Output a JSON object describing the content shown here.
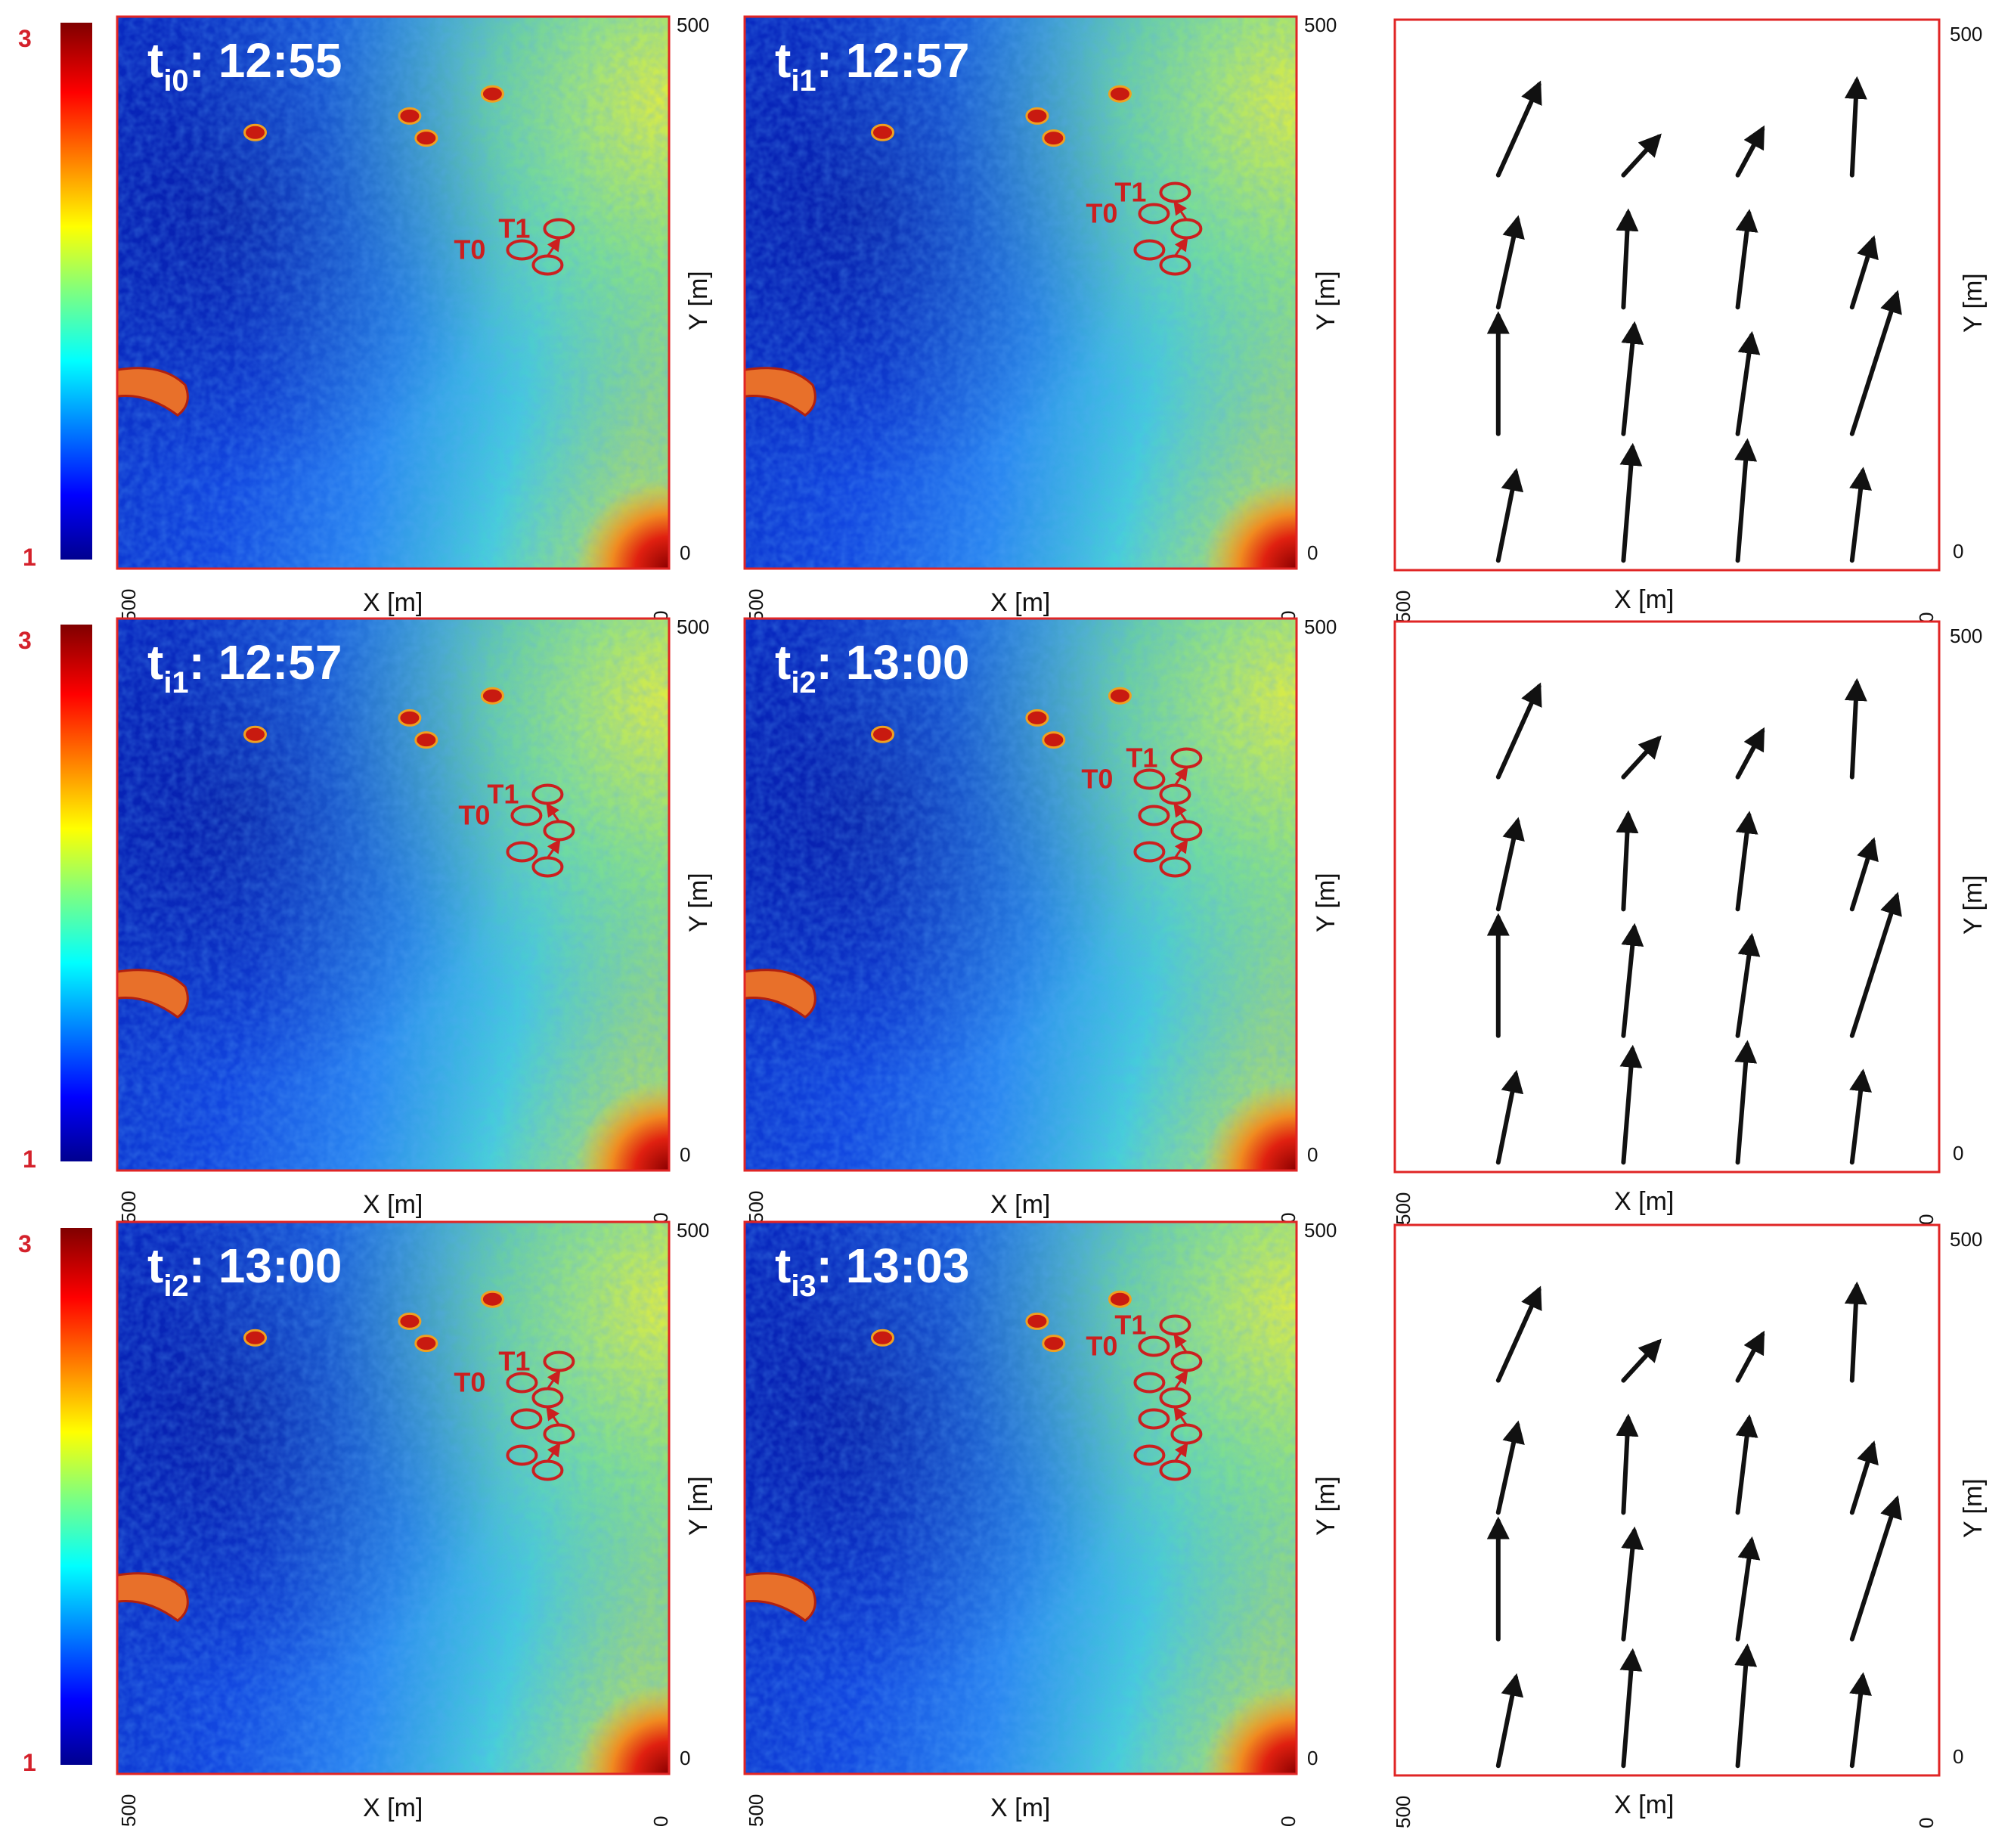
{
  "colorbar": {
    "max_label": "3",
    "min_label": "1"
  },
  "axes": {
    "x_label": "X [m]",
    "y_label": "Y [m]",
    "x_left_tick": "500",
    "x_right_tick": "0",
    "y_top_tick": "500",
    "y_bottom_tick": "0"
  },
  "colors": {
    "frame": "#e02525",
    "track": "#cc1f1f",
    "arrow": "#111111"
  },
  "rows": [
    {
      "left": {
        "label_main": "t",
        "label_sub": "i0",
        "label_time": ": 12:55",
        "track_labels": [
          "T1",
          "T0"
        ],
        "track_steps": 1
      },
      "mid": {
        "label_main": "t",
        "label_sub": "i1",
        "label_time": ": 12:57",
        "track_labels": [
          "T1",
          "T0"
        ],
        "track_steps": 2
      }
    },
    {
      "left": {
        "label_main": "t",
        "label_sub": "i1",
        "label_time": ": 12:57",
        "track_labels": [
          "T1",
          "T0"
        ],
        "track_steps": 2
      },
      "mid": {
        "label_main": "t",
        "label_sub": "i2",
        "label_time": ": 13:00",
        "track_labels": [
          "T1",
          "T0"
        ],
        "track_steps": 3
      }
    },
    {
      "left": {
        "label_main": "t",
        "label_sub": "i2",
        "label_time": ": 13:00",
        "track_labels": [
          "T1",
          "T0"
        ],
        "track_steps": 3
      },
      "mid": {
        "label_main": "t",
        "label_sub": "i3",
        "label_time": ": 13:03",
        "track_labels": [
          "T1",
          "T0"
        ],
        "track_steps": 4
      }
    }
  ],
  "vector_field": {
    "description_units": "m",
    "vectors": [
      [
        {
          "dx": 0.45,
          "dy": 1.0,
          "len": 1.05
        },
        {
          "dx": 0.55,
          "dy": 0.6,
          "len": 0.55
        },
        {
          "dx": 0.35,
          "dy": 0.65,
          "len": 0.55
        },
        {
          "dx": 0.05,
          "dy": 1.0,
          "len": 1.0
        }
      ],
      [
        {
          "dx": 0.22,
          "dy": 1.0,
          "len": 0.95
        },
        {
          "dx": 0.05,
          "dy": 1.0,
          "len": 1.0
        },
        {
          "dx": 0.12,
          "dy": 1.0,
          "len": 1.0
        },
        {
          "dx": 0.28,
          "dy": 0.9,
          "len": 0.75
        }
      ],
      [
        {
          "dx": 0.0,
          "dy": 1.0,
          "len": 1.25
        },
        {
          "dx": 0.1,
          "dy": 1.0,
          "len": 1.15
        },
        {
          "dx": 0.14,
          "dy": 1.0,
          "len": 1.05
        },
        {
          "dx": 0.32,
          "dy": 1.0,
          "len": 1.55
        }
      ],
      [
        {
          "dx": 0.2,
          "dy": 1.0,
          "len": 0.95
        },
        {
          "dx": 0.08,
          "dy": 1.0,
          "len": 1.2
        },
        {
          "dx": 0.08,
          "dy": 1.0,
          "len": 1.25
        },
        {
          "dx": 0.12,
          "dy": 1.0,
          "len": 0.95
        }
      ]
    ]
  }
}
